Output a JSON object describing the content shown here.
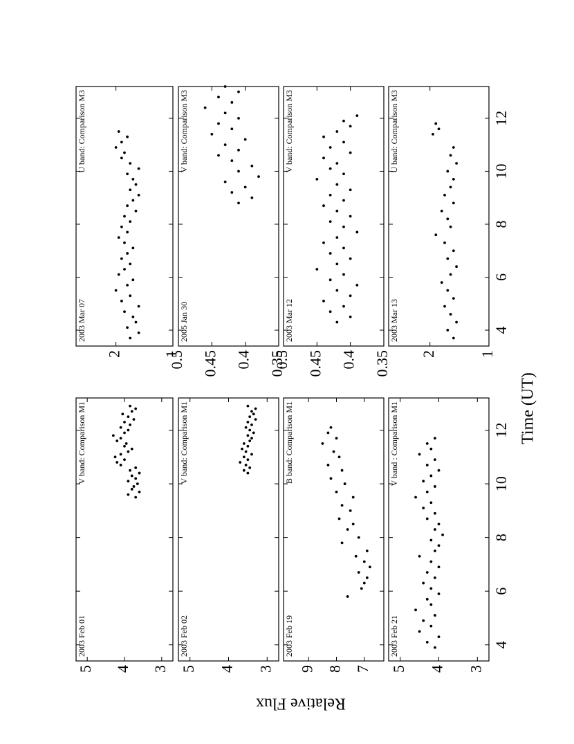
{
  "xlabel": "Time (UT)",
  "ylabel": "Relative Flux",
  "chart_data": [
    {
      "type": "scatter",
      "annotations": [
        "2003 Feb 01",
        "V band: Comparison M1"
      ],
      "color": "#000000",
      "x": [
        9.5,
        9.6,
        9.7,
        9.8,
        9.9,
        10.0,
        10.1,
        10.2,
        10.3,
        10.4,
        10.5,
        10.6,
        10.7,
        10.8,
        10.9,
        11.0,
        11.1,
        11.2,
        11.3,
        11.4,
        11.5,
        11.6,
        11.7,
        11.8,
        11.9,
        12.0,
        12.1,
        12.2,
        12.3,
        12.4,
        12.5,
        12.6,
        12.7,
        12.8,
        12.9
      ],
      "values": [
        3.7,
        3.9,
        3.6,
        3.8,
        3.75,
        3.65,
        3.9,
        3.7,
        3.8,
        3.6,
        3.85,
        3.7,
        4.1,
        4.2,
        4.0,
        4.25,
        4.1,
        3.9,
        3.8,
        4.0,
        3.95,
        4.2,
        4.1,
        4.3,
        4.0,
        3.9,
        4.1,
        3.85,
        4.0,
        3.75,
        3.9,
        4.05,
        3.8,
        3.7,
        3.85
      ],
      "xlim": [
        3.4,
        13.2
      ],
      "xticks": [
        4,
        6,
        8,
        10,
        12
      ],
      "ylim": [
        2.7,
        5.3
      ],
      "yticks": [
        3,
        4,
        5
      ]
    },
    {
      "type": "scatter",
      "annotations": [
        "2003 Feb 02",
        "V band: Comparison M1"
      ],
      "color": "#000000",
      "x": [
        10.4,
        10.5,
        10.6,
        10.7,
        10.8,
        10.9,
        11.0,
        11.1,
        11.2,
        11.3,
        11.4,
        11.5,
        11.6,
        11.7,
        11.8,
        11.9,
        12.0,
        12.1,
        12.2,
        12.3,
        12.4,
        12.5,
        12.6,
        12.7,
        12.8,
        12.9
      ],
      "values": [
        3.5,
        3.6,
        3.45,
        3.55,
        3.7,
        3.5,
        3.6,
        3.4,
        3.55,
        3.65,
        3.5,
        3.6,
        3.45,
        3.4,
        3.5,
        3.35,
        3.45,
        3.55,
        3.4,
        3.5,
        3.3,
        3.45,
        3.35,
        3.4,
        3.3,
        3.5
      ],
      "xlim": [
        3.4,
        13.2
      ],
      "xticks": [
        4,
        6,
        8,
        10,
        12
      ],
      "ylim": [
        2.7,
        5.3
      ],
      "yticks": [
        3,
        4,
        5
      ]
    },
    {
      "type": "scatter",
      "annotations": [
        "2003 Feb 19",
        "B band: Comparison M1"
      ],
      "color": "#000000",
      "x": [
        5.8,
        6.1,
        6.3,
        6.5,
        6.7,
        6.9,
        7.1,
        7.3,
        7.5,
        7.8,
        8.0,
        8.3,
        8.5,
        8.7,
        9.0,
        9.2,
        9.5,
        9.7,
        10.0,
        10.2,
        10.5,
        10.7,
        11.0,
        11.2,
        11.5,
        11.7,
        11.9,
        12.1
      ],
      "values": [
        7.6,
        7.1,
        7.0,
        6.9,
        7.2,
        6.8,
        7.0,
        7.3,
        6.9,
        7.8,
        7.2,
        7.6,
        7.4,
        7.9,
        7.5,
        7.8,
        7.4,
        8.0,
        7.7,
        8.2,
        7.8,
        8.3,
        7.9,
        8.1,
        8.5,
        8.0,
        8.3,
        8.2
      ],
      "xlim": [
        3.4,
        13.2
      ],
      "xticks": [
        4,
        6,
        8,
        10,
        12
      ],
      "ylim": [
        6.3,
        9.9
      ],
      "yticks": [
        7,
        8,
        9
      ]
    },
    {
      "type": "scatter",
      "annotations": [
        "2003 Feb 21",
        "V band : Comparison M1"
      ],
      "color": "#000000",
      "x": [
        3.9,
        4.1,
        4.3,
        4.5,
        4.7,
        4.9,
        5.1,
        5.3,
        5.5,
        5.7,
        5.9,
        6.1,
        6.3,
        6.5,
        6.7,
        6.9,
        7.1,
        7.3,
        7.5,
        7.7,
        7.9,
        8.1,
        8.3,
        8.5,
        8.7,
        8.9,
        9.1,
        9.3,
        9.5,
        9.7,
        9.9,
        10.1,
        10.3,
        10.5,
        10.7,
        10.9,
        11.1,
        11.3,
        11.5,
        11.7
      ],
      "values": [
        4.1,
        4.3,
        4.0,
        4.5,
        4.2,
        4.4,
        4.1,
        4.6,
        4.2,
        4.3,
        4.0,
        4.2,
        4.4,
        4.1,
        4.3,
        4.0,
        4.2,
        4.5,
        4.1,
        4.0,
        4.2,
        3.9,
        4.1,
        4.0,
        4.3,
        4.1,
        4.4,
        4.2,
        4.6,
        4.3,
        4.1,
        4.4,
        4.2,
        4.0,
        4.3,
        4.1,
        4.5,
        4.2,
        4.3,
        4.1
      ],
      "xlim": [
        3.4,
        13.2
      ],
      "xticks": [
        4,
        6,
        8,
        10,
        12
      ],
      "ylim": [
        2.7,
        5.3
      ],
      "yticks": [
        3,
        4,
        5
      ]
    },
    {
      "type": "scatter",
      "annotations": [
        "2003 Mar 07",
        "U band: Comparison M3"
      ],
      "color": "#000000",
      "x": [
        3.7,
        3.9,
        4.1,
        4.3,
        4.5,
        4.7,
        4.9,
        5.1,
        5.3,
        5.5,
        5.7,
        5.9,
        6.1,
        6.3,
        6.5,
        6.7,
        6.9,
        7.1,
        7.3,
        7.5,
        7.7,
        7.9,
        8.1,
        8.3,
        8.5,
        8.7,
        8.9,
        9.1,
        9.3,
        9.5,
        9.7,
        9.9,
        10.1,
        10.3,
        10.5,
        10.7,
        10.9,
        11.1,
        11.3,
        11.5
      ],
      "values": [
        1.75,
        1.6,
        1.8,
        1.65,
        1.7,
        1.85,
        1.6,
        1.9,
        1.75,
        2.0,
        1.8,
        1.7,
        1.95,
        1.85,
        1.75,
        1.9,
        1.8,
        1.7,
        1.85,
        1.95,
        1.8,
        1.9,
        1.75,
        1.85,
        1.65,
        1.8,
        1.7,
        1.6,
        1.75,
        1.65,
        1.7,
        1.8,
        1.6,
        1.75,
        1.9,
        1.85,
        2.0,
        1.9,
        1.8,
        1.95
      ],
      "xlim": [
        3.4,
        13.2
      ],
      "xticks": [
        4,
        6,
        8,
        10,
        12
      ],
      "ylim": [
        1,
        2.7
      ],
      "yticks": [
        1,
        2
      ]
    },
    {
      "type": "scatter",
      "annotations": [
        "2005 Jan 30",
        "V band: Comparison M3"
      ],
      "color": "#000000",
      "x": [
        8.8,
        9.0,
        9.2,
        9.4,
        9.6,
        9.8,
        10.0,
        10.2,
        10.4,
        10.6,
        10.8,
        11.0,
        11.2,
        11.4,
        11.6,
        11.8,
        12.0,
        12.2,
        12.4,
        12.6,
        12.8,
        13.0,
        13.2
      ],
      "values": [
        0.41,
        0.39,
        0.42,
        0.4,
        0.43,
        0.38,
        0.41,
        0.39,
        0.42,
        0.44,
        0.41,
        0.43,
        0.4,
        0.45,
        0.42,
        0.44,
        0.41,
        0.43,
        0.46,
        0.42,
        0.44,
        0.41,
        0.43
      ],
      "xlim": [
        3.4,
        13.2
      ],
      "xticks": [
        4,
        6,
        8,
        10,
        12
      ],
      "ylim": [
        0.35,
        0.5
      ],
      "yticks": [
        0.35,
        0.4,
        0.45,
        0.5
      ]
    },
    {
      "type": "scatter",
      "annotations": [
        "2003 Mar 12",
        "V band: Comparison M3"
      ],
      "color": "#000000",
      "x": [
        4.3,
        4.5,
        4.7,
        4.9,
        5.1,
        5.3,
        5.5,
        5.7,
        5.9,
        6.1,
        6.3,
        6.5,
        6.7,
        6.9,
        7.1,
        7.3,
        7.5,
        7.7,
        7.9,
        8.1,
        8.3,
        8.5,
        8.7,
        8.9,
        9.1,
        9.3,
        9.5,
        9.7,
        9.9,
        10.1,
        10.3,
        10.5,
        10.7,
        10.9,
        11.1,
        11.3,
        11.5,
        11.7,
        11.9,
        12.1
      ],
      "values": [
        0.42,
        0.4,
        0.43,
        0.41,
        0.44,
        0.4,
        0.42,
        0.39,
        0.43,
        0.41,
        0.45,
        0.42,
        0.4,
        0.43,
        0.41,
        0.44,
        0.42,
        0.39,
        0.41,
        0.43,
        0.4,
        0.42,
        0.44,
        0.41,
        0.43,
        0.4,
        0.42,
        0.45,
        0.41,
        0.43,
        0.42,
        0.44,
        0.4,
        0.43,
        0.41,
        0.44,
        0.42,
        0.4,
        0.41,
        0.39
      ],
      "xlim": [
        3.4,
        13.2
      ],
      "xticks": [
        4,
        6,
        8,
        10,
        12
      ],
      "ylim": [
        0.35,
        0.5
      ],
      "yticks": [
        0.35,
        0.4,
        0.45,
        0.5
      ]
    },
    {
      "type": "scatter",
      "annotations": [
        "2003 Mar 13",
        "U band: Comparison M3"
      ],
      "color": "#000000",
      "x": [
        3.7,
        4.0,
        4.3,
        4.6,
        4.9,
        5.2,
        5.5,
        5.8,
        6.1,
        6.4,
        6.7,
        7.0,
        7.3,
        7.6,
        7.9,
        8.2,
        8.5,
        8.8,
        9.1,
        9.4,
        9.7,
        10.0,
        10.3,
        10.6,
        10.9,
        11.4,
        11.6,
        11.8
      ],
      "values": [
        1.6,
        1.7,
        1.55,
        1.65,
        1.75,
        1.6,
        1.7,
        1.8,
        1.65,
        1.55,
        1.7,
        1.6,
        1.75,
        1.9,
        1.65,
        1.7,
        1.8,
        1.6,
        1.75,
        1.65,
        1.6,
        1.7,
        1.55,
        1.65,
        1.6,
        1.95,
        1.85,
        1.9
      ],
      "xlim": [
        3.4,
        13.2
      ],
      "xticks": [
        4,
        6,
        8,
        10,
        12
      ],
      "ylim": [
        1,
        2.7
      ],
      "yticks": [
        1,
        2
      ]
    }
  ]
}
